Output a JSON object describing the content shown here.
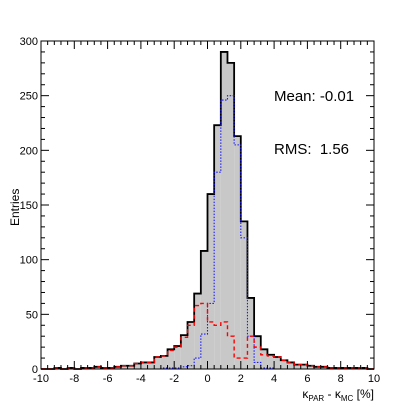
{
  "chart_data": {
    "type": "histogram",
    "xlim": [
      -10,
      10
    ],
    "ylim": [
      0,
      300
    ],
    "xlabel": "κ_PAR - κ_MC [%]",
    "xlabel_parts": {
      "main": "κ",
      "sub1": "PAR",
      "mid": " - κ",
      "sub2": "MC",
      "unit": " [%]"
    },
    "ylabel": "Entries",
    "x_ticks": [
      -10,
      -8,
      -6,
      -4,
      -2,
      0,
      2,
      4,
      6,
      8,
      10
    ],
    "y_ticks": [
      0,
      50,
      100,
      150,
      200,
      250,
      300
    ],
    "bin_edges_start": -10,
    "bin_width": 0.4,
    "series": [
      {
        "style": "solid-black-filled",
        "values": [
          0,
          0,
          1,
          0,
          1,
          0,
          1,
          1,
          2,
          1,
          1,
          2,
          3,
          3,
          5,
          6,
          6,
          11,
          12,
          18,
          21,
          31,
          43,
          69,
          108,
          160,
          223,
          290,
          280,
          213,
          135,
          65,
          30,
          18,
          13,
          11,
          8,
          6,
          4,
          4,
          3,
          2,
          2,
          1,
          1,
          1,
          1,
          1,
          1,
          0
        ]
      },
      {
        "style": "dotted-blue",
        "values": [
          0,
          0,
          0,
          0,
          0,
          0,
          0,
          0,
          0,
          0,
          0,
          0,
          0,
          0,
          0,
          0,
          0,
          0,
          1,
          1,
          1,
          2,
          3,
          10,
          32,
          60,
          180,
          246,
          250,
          205,
          120,
          30,
          6,
          1,
          1,
          0,
          0,
          0,
          0,
          0,
          0,
          0,
          0,
          0,
          0,
          0,
          0,
          0,
          0,
          0
        ]
      },
      {
        "style": "dashed-red",
        "values": [
          0,
          0,
          1,
          0,
          1,
          0,
          1,
          1,
          2,
          1,
          1,
          2,
          3,
          3,
          5,
          6,
          6,
          11,
          12,
          17,
          20,
          29,
          40,
          58,
          60,
          43,
          40,
          43,
          30,
          10,
          10,
          30,
          20,
          13,
          12,
          11,
          8,
          6,
          4,
          4,
          3,
          2,
          2,
          1,
          1,
          1,
          1,
          1,
          1,
          0
        ]
      }
    ],
    "stats": {
      "mean_label": "Mean: -0.01",
      "rms_label": "RMS:  1.56"
    }
  },
  "colors": {
    "fill": "#c8c8c8",
    "total": "#000000",
    "blue": "#1a1aff",
    "red": "#ff0000"
  }
}
